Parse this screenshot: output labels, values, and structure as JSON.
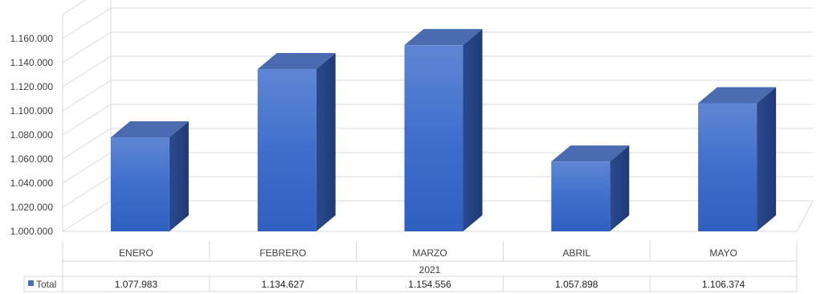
{
  "chart_data": {
    "type": "bar",
    "style": "3d-clustered-column",
    "group_label": "2021",
    "categories": [
      "ENERO",
      "FEBRERO",
      "MARZO",
      "ABRIL",
      "MAYO"
    ],
    "series": [
      {
        "name": "Total",
        "values": [
          1077983,
          1134627,
          1154556,
          1057898,
          1106374
        ],
        "value_labels": [
          "1.077.983",
          "1.134.627",
          "1.154.556",
          "1.057.898",
          "1.106.374"
        ],
        "color": "#4472C4"
      }
    ],
    "yticks": [
      "1.000.000",
      "1.020.000",
      "1.040.000",
      "1.060.000",
      "1.080.000",
      "1.100.000",
      "1.120.000",
      "1.140.000",
      "1.160.000"
    ],
    "ylim": [
      1000000,
      1160000
    ],
    "grid": true,
    "legend": "data-table"
  }
}
